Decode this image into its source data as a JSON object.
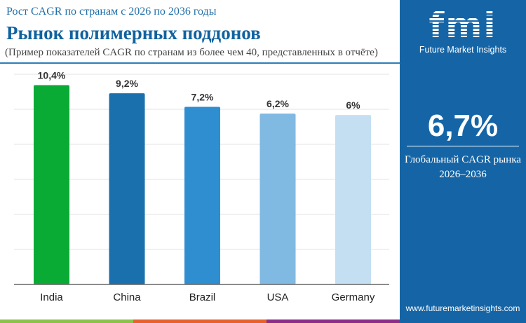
{
  "header": {
    "subtitle": "Рост CAGR по странам с 2026 по 2036 годы",
    "title": "Рынок полимерных поддонов",
    "note": "(Пример показателей CAGR по странам из более чем 40, представленных в отчёте)"
  },
  "panel": {
    "logo_text": "fmi",
    "brand": "Future Market Insights",
    "global_cagr": "6,7%",
    "global_label": "Глобальный CAGR рынка",
    "period": "2026–2036",
    "url": "www.futuremarketinsights.com",
    "bg_color": "#1565a6"
  },
  "footer_strip_colors": [
    "#8bc34a",
    "#e8612c",
    "#8a2e8a"
  ],
  "chart_data": {
    "type": "bar",
    "categories": [
      "India",
      "China",
      "Brazil",
      "USA",
      "Germany"
    ],
    "values": [
      10.4,
      9.2,
      7.2,
      6.2,
      6
    ],
    "labels": [
      "10,4%",
      "9,2%",
      "7,2%",
      "6,2%",
      "6%"
    ],
    "colors": [
      "#0aab35",
      "#1a70ad",
      "#2e8ed0",
      "#80b9e1",
      "#c3dff1"
    ],
    "ylim": [
      -19,
      12
    ],
    "grid": true,
    "title": "",
    "xlabel": "",
    "ylabel": ""
  }
}
